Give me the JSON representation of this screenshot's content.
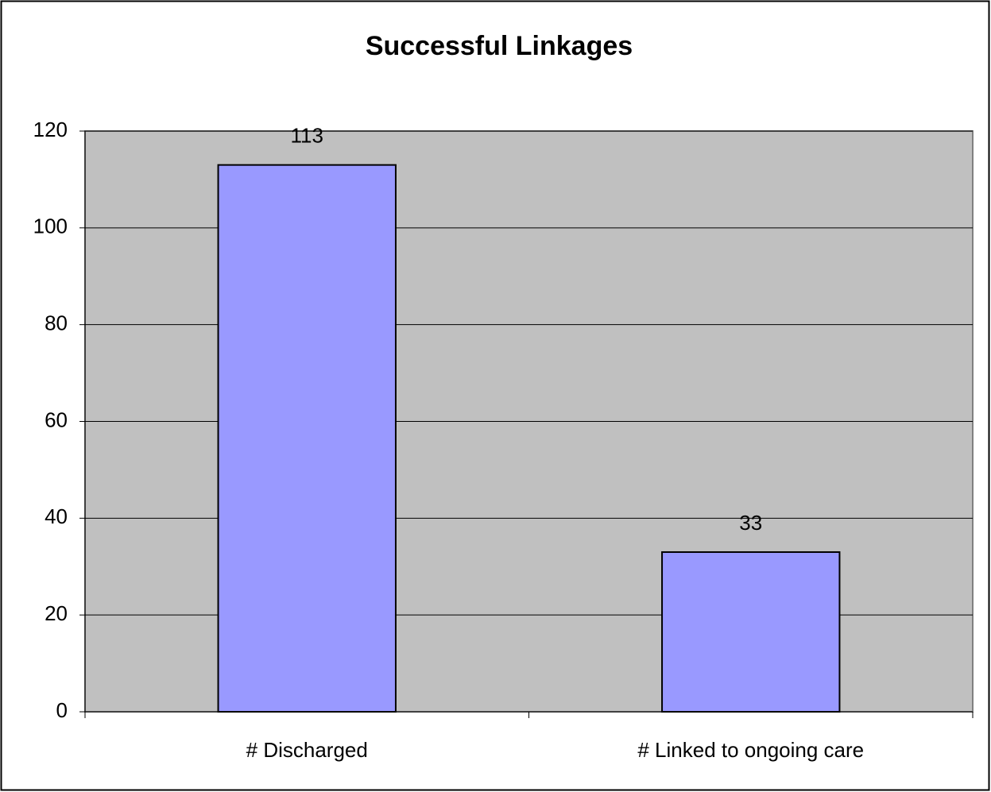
{
  "chart_data": {
    "type": "bar",
    "title": "Successful Linkages",
    "categories": [
      "# Discharged",
      "# Linked to ongoing care"
    ],
    "values": [
      113,
      33
    ],
    "color": "#9999ff",
    "ylim": [
      0,
      120
    ],
    "yticks": [
      0,
      20,
      40,
      60,
      80,
      100,
      120
    ],
    "grid": true
  }
}
